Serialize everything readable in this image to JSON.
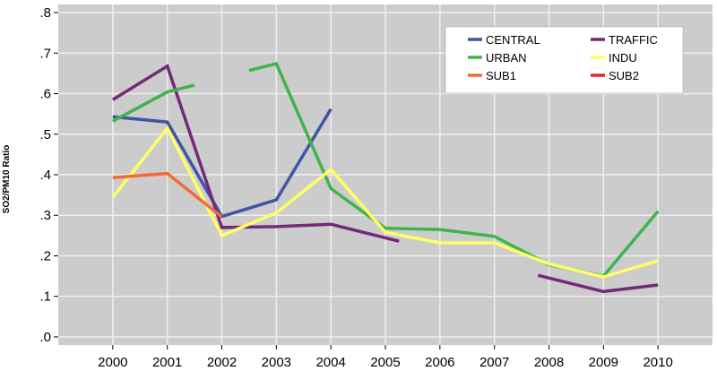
{
  "chart_data": {
    "type": "line",
    "x": [
      2000,
      2001,
      2002,
      2003,
      2004,
      2005,
      2006,
      2007,
      2008,
      2009,
      2010
    ],
    "x_tick_labels": [
      "2000",
      "2001",
      "2002",
      "2003",
      "2004",
      "2005",
      "2006",
      "2007",
      "2008",
      "2009",
      "2010"
    ],
    "xlim": [
      1999,
      2011
    ],
    "ylim": [
      -0.02,
      0.82
    ],
    "y_ticks": [
      0,
      0.1,
      0.2,
      0.3,
      0.4,
      0.5,
      0.6,
      0.7,
      0.8
    ],
    "y_tick_labels": [
      ".0",
      ".1",
      ".2",
      ".3",
      ".4",
      ".5",
      ".6",
      ".7",
      ".8"
    ],
    "ylabel": "SO2/PM10 Ratio",
    "xlabel": "",
    "title": "",
    "grid": true,
    "plot_background": "#cccccc",
    "grid_color": "#eeeeee",
    "legend_position": "top-right",
    "series": [
      {
        "name": "CENTRAL",
        "color": "#3f55a6",
        "segments": [
          [
            [
              2000,
              0.543
            ],
            [
              2001,
              0.53
            ],
            [
              2002,
              0.297
            ],
            [
              2003,
              0.338
            ],
            [
              2004,
              0.562
            ]
          ]
        ]
      },
      {
        "name": "TRAFFIC",
        "color": "#74297a",
        "segments": [
          [
            [
              2000,
              0.585
            ],
            [
              2001,
              0.668
            ],
            [
              2002,
              0.27
            ],
            [
              2003,
              0.272
            ],
            [
              2004,
              0.278
            ],
            [
              2005.25,
              0.236
            ]
          ],
          [
            [
              2007.8,
              0.152
            ],
            [
              2009,
              0.112
            ],
            [
              2010,
              0.128
            ]
          ]
        ]
      },
      {
        "name": "URBAN",
        "color": "#3fb44a",
        "segments": [
          [
            [
              2000,
              0.532
            ],
            [
              2001,
              0.604
            ],
            [
              2001.5,
              0.621
            ]
          ],
          [
            [
              2002.5,
              0.657
            ],
            [
              2003,
              0.674
            ],
            [
              2004,
              0.366
            ],
            [
              2005,
              0.268
            ],
            [
              2006,
              0.265
            ],
            [
              2007,
              0.248
            ],
            [
              2008,
              0.178
            ],
            [
              2009,
              0.15
            ],
            [
              2010,
              0.31
            ]
          ]
        ]
      },
      {
        "name": "INDU",
        "color": "#ffff66",
        "segments": [
          [
            [
              2000,
              0.344
            ],
            [
              2001,
              0.515
            ],
            [
              2002,
              0.25
            ],
            [
              2003,
              0.306
            ],
            [
              2004,
              0.413
            ],
            [
              2005,
              0.258
            ],
            [
              2006,
              0.232
            ],
            [
              2007,
              0.232
            ],
            [
              2008,
              0.18
            ],
            [
              2009,
              0.148
            ],
            [
              2010,
              0.188
            ]
          ]
        ]
      },
      {
        "name": "SUB1",
        "color": "#f26a3c",
        "segments": [
          [
            [
              2000,
              0.393
            ],
            [
              2001,
              0.403
            ],
            [
              2002,
              0.296
            ]
          ]
        ]
      },
      {
        "name": "SUB2",
        "color": "#e3262f",
        "segments": []
      }
    ]
  }
}
